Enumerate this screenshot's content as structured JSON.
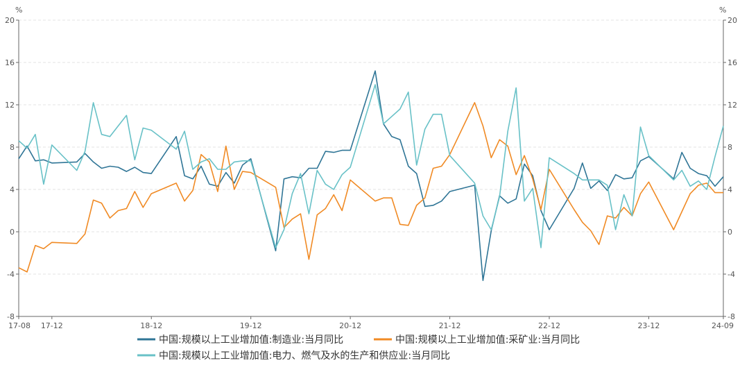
{
  "chart_data": {
    "type": "line",
    "y_unit_left": "%",
    "y_unit_right": "%",
    "ylim": [
      -8,
      20
    ],
    "yticks": [
      -8,
      -4,
      0,
      4,
      8,
      12,
      16,
      20
    ],
    "x_tick_labels": [
      "17-08",
      "17-12",
      "18-12",
      "19-12",
      "20-12",
      "21-12",
      "22-12",
      "23-12",
      "24-09"
    ],
    "x": [
      "2017-08",
      "2017-09",
      "2017-10",
      "2017-11",
      "2017-12",
      "2018-03",
      "2018-04",
      "2018-05",
      "2018-06",
      "2018-07",
      "2018-08",
      "2018-09",
      "2018-10",
      "2018-11",
      "2018-12",
      "2019-03",
      "2019-04",
      "2019-05",
      "2019-06",
      "2019-07",
      "2019-08",
      "2019-09",
      "2019-10",
      "2019-11",
      "2019-12",
      "2020-03",
      "2020-04",
      "2020-05",
      "2020-06",
      "2020-07",
      "2020-08",
      "2020-09",
      "2020-10",
      "2020-11",
      "2020-12",
      "2021-03",
      "2021-04",
      "2021-05",
      "2021-06",
      "2021-07",
      "2021-08",
      "2021-09",
      "2021-10",
      "2021-11",
      "2021-12",
      "2022-03",
      "2022-04",
      "2022-05",
      "2022-06",
      "2022-07",
      "2022-08",
      "2022-09",
      "2022-10",
      "2022-11",
      "2022-12",
      "2023-03",
      "2023-04",
      "2023-05",
      "2023-06",
      "2023-07",
      "2023-08",
      "2023-09",
      "2023-10",
      "2023-11",
      "2023-12",
      "2024-03",
      "2024-04",
      "2024-05",
      "2024-06",
      "2024-07",
      "2024-08",
      "2024-09"
    ],
    "series": [
      {
        "name": "中国:规模以上工业增加值:制造业:当月同比",
        "color": "#2f7596",
        "values": [
          6.9,
          8.1,
          6.7,
          6.8,
          6.5,
          6.6,
          7.4,
          6.6,
          6.0,
          6.2,
          6.1,
          5.7,
          6.1,
          5.6,
          5.5,
          9.0,
          5.3,
          5.0,
          6.2,
          4.5,
          4.3,
          5.6,
          4.6,
          6.3,
          6.9,
          -1.8,
          5.0,
          5.2,
          5.1,
          6.0,
          6.0,
          7.6,
          7.5,
          7.7,
          7.7,
          15.2,
          10.2,
          9.0,
          8.7,
          6.2,
          5.5,
          2.4,
          2.5,
          2.9,
          3.8,
          4.4,
          -4.6,
          0.1,
          3.4,
          2.7,
          3.1,
          6.4,
          5.3,
          2.0,
          0.2,
          4.1,
          6.5,
          4.1,
          4.8,
          3.9,
          5.4,
          5.0,
          5.1,
          6.7,
          7.1,
          5.0,
          7.5,
          6.0,
          5.5,
          5.3,
          4.3,
          5.2
        ]
      },
      {
        "name": "中国:规模以上工业增加值:采矿业:当月同比",
        "color": "#f08a24",
        "values": [
          -3.4,
          -3.8,
          -1.3,
          -1.6,
          -1.0,
          -1.1,
          -0.2,
          3.0,
          2.7,
          1.3,
          2.0,
          2.2,
          3.8,
          2.3,
          3.6,
          4.6,
          2.9,
          3.9,
          7.3,
          6.6,
          3.8,
          8.1,
          4.0,
          5.7,
          5.6,
          4.2,
          0.4,
          1.2,
          1.7,
          -2.6,
          1.6,
          2.2,
          3.5,
          2.0,
          4.9,
          2.9,
          3.2,
          3.2,
          0.7,
          0.6,
          2.5,
          3.2,
          6.0,
          6.2,
          7.3,
          12.2,
          10.0,
          7.0,
          8.7,
          8.1,
          5.4,
          7.2,
          5.0,
          2.1,
          5.9,
          2.1,
          0.9,
          0.1,
          -1.2,
          1.5,
          1.3,
          2.3,
          1.5,
          3.6,
          4.7,
          0.2,
          1.9,
          3.6,
          4.4,
          4.6,
          3.7,
          3.7
        ]
      },
      {
        "name": "中国:规模以上工业增加值:电力、燃气及水的生产和供应业:当月同比",
        "color": "#68c1c7",
        "values": [
          8.6,
          7.9,
          9.2,
          4.5,
          8.2,
          5.8,
          7.6,
          12.2,
          9.2,
          9.0,
          10.0,
          11.0,
          6.8,
          9.8,
          9.6,
          7.8,
          9.5,
          5.9,
          6.6,
          6.9,
          5.9,
          5.9,
          6.6,
          6.7,
          6.7,
          -1.5,
          0.2,
          3.6,
          5.5,
          1.7,
          5.8,
          4.5,
          4.0,
          5.4,
          6.1,
          13.9,
          10.2,
          10.9,
          11.6,
          13.2,
          6.3,
          9.7,
          11.1,
          11.1,
          7.2,
          4.6,
          1.5,
          0.2,
          3.3,
          9.5,
          13.6,
          2.9,
          4.1,
          -1.5,
          7.0,
          5.5,
          4.9,
          4.9,
          4.9,
          4.4,
          0.2,
          3.5,
          1.5,
          9.9,
          7.2,
          4.9,
          5.8,
          4.3,
          4.8,
          4.0,
          7.1,
          10.0
        ]
      }
    ],
    "legend_position": "bottom",
    "grid": true
  }
}
